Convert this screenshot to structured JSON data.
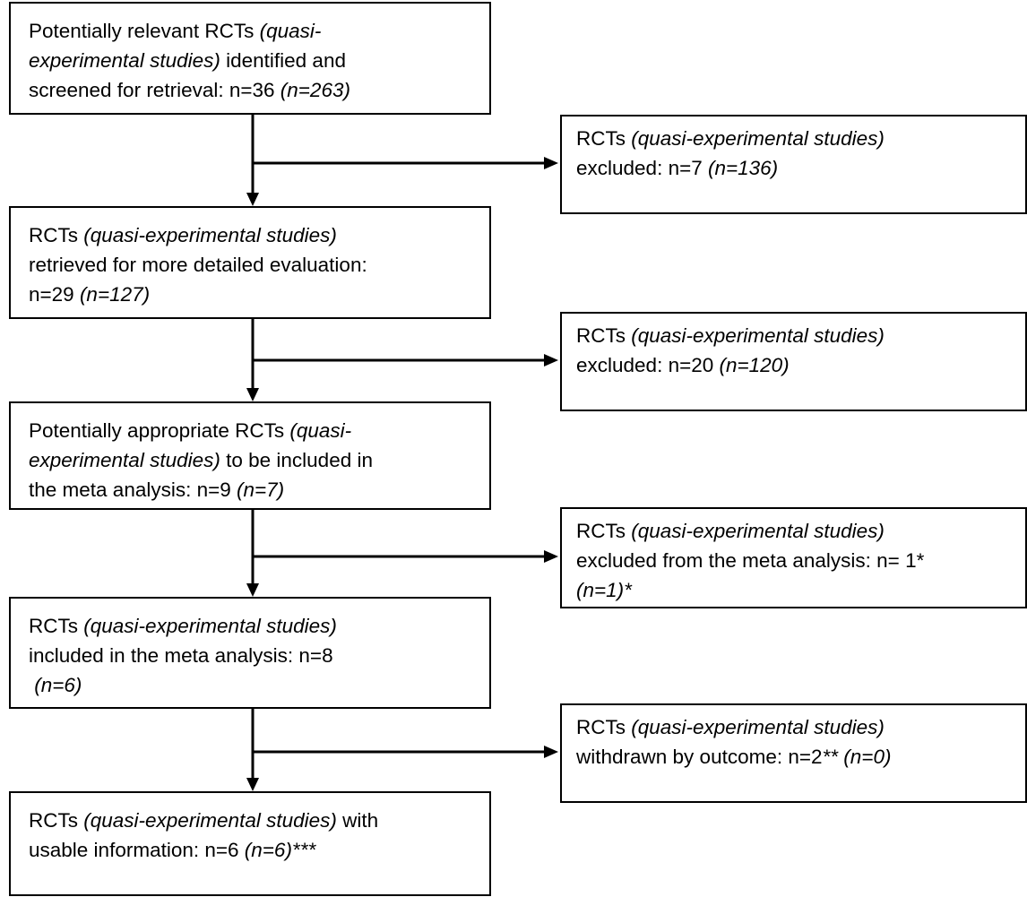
{
  "main": [
    [
      [
        {
          "text": "Potentially relevant RCTs ",
          "italic": false
        },
        {
          "text": "(quasi-",
          "italic": true
        }
      ],
      [
        {
          "text": "experimental studies)",
          "italic": true
        },
        {
          "text": " identified and",
          "italic": false
        }
      ],
      [
        {
          "text": "screened for retrieval: n=36 ",
          "italic": false
        },
        {
          "text": "(n=263)",
          "italic": true
        }
      ]
    ],
    [
      [
        {
          "text": "RCTs ",
          "italic": false
        },
        {
          "text": "(quasi-experimental studies)",
          "italic": true
        }
      ],
      [
        {
          "text": "retrieved for more detailed evaluation:",
          "italic": false
        }
      ],
      [
        {
          "text": "n=29 ",
          "italic": false
        },
        {
          "text": "(n=127)",
          "italic": true
        }
      ]
    ],
    [
      [
        {
          "text": "Potentially appropriate RCTs ",
          "italic": false
        },
        {
          "text": "(quasi-",
          "italic": true
        }
      ],
      [
        {
          "text": "experimental studies)",
          "italic": true
        },
        {
          "text": " to be included in",
          "italic": false
        }
      ],
      [
        {
          "text": "the meta analysis: n=9 ",
          "italic": false
        },
        {
          "text": "(n=7)",
          "italic": true
        }
      ]
    ],
    [
      [
        {
          "text": "RCTs ",
          "italic": false
        },
        {
          "text": "(quasi-experimental studies)",
          "italic": true
        }
      ],
      [
        {
          "text": "included in the meta analysis: n=8",
          "italic": false
        }
      ],
      [
        {
          "text": " (n=6)",
          "italic": true
        }
      ]
    ],
    [
      [
        {
          "text": "RCTs ",
          "italic": false
        },
        {
          "text": "(quasi-experimental studies)",
          "italic": true
        },
        {
          "text": " with",
          "italic": false
        }
      ],
      [
        {
          "text": "usable information: n=6 ",
          "italic": false
        },
        {
          "text": "(n=6)***",
          "italic": true
        }
      ]
    ]
  ],
  "side": [
    [
      [
        {
          "text": "RCTs ",
          "italic": false
        },
        {
          "text": "(quasi-experimental studies)",
          "italic": true
        }
      ],
      [
        {
          "text": "excluded: n=7 ",
          "italic": false
        },
        {
          "text": "(n=136)",
          "italic": true
        }
      ]
    ],
    [
      [
        {
          "text": "RCTs ",
          "italic": false
        },
        {
          "text": "(quasi-experimental studies)",
          "italic": true
        }
      ],
      [
        {
          "text": "excluded: n=20 ",
          "italic": false
        },
        {
          "text": "(n=120)",
          "italic": true
        }
      ]
    ],
    [
      [
        {
          "text": "RCTs ",
          "italic": false
        },
        {
          "text": "(quasi-experimental studies)",
          "italic": true
        }
      ],
      [
        {
          "text": "excluded from the meta analysis: n= 1*",
          "italic": false
        }
      ],
      [
        {
          "text": "(n=1)*",
          "italic": true
        }
      ]
    ],
    [
      [
        {
          "text": "RCTs ",
          "italic": false
        },
        {
          "text": "(quasi-experimental studies)",
          "italic": true
        }
      ],
      [
        {
          "text": "withdrawn by outcome: n=2",
          "italic": false
        },
        {
          "text": "** (n=0)",
          "italic": true
        }
      ]
    ]
  ]
}
